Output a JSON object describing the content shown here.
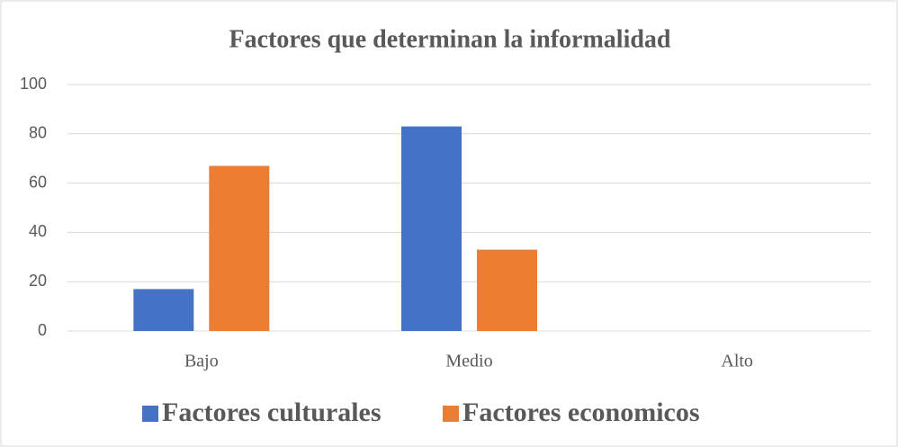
{
  "chart_data": {
    "type": "bar",
    "title": "Factores que determinan la informalidad",
    "categories": [
      "Bajo",
      "Medio",
      "Alto"
    ],
    "series": [
      {
        "name": "Factores culturales",
        "color": "#4472c4",
        "values": [
          17,
          83,
          0
        ]
      },
      {
        "name": "Factores economicos",
        "color": "#ed7d31",
        "values": [
          67,
          33,
          0
        ]
      }
    ],
    "ylim": [
      0,
      100
    ],
    "yticks": [
      0,
      20,
      40,
      60,
      80,
      100
    ],
    "grid": true,
    "legend": "bottom"
  }
}
